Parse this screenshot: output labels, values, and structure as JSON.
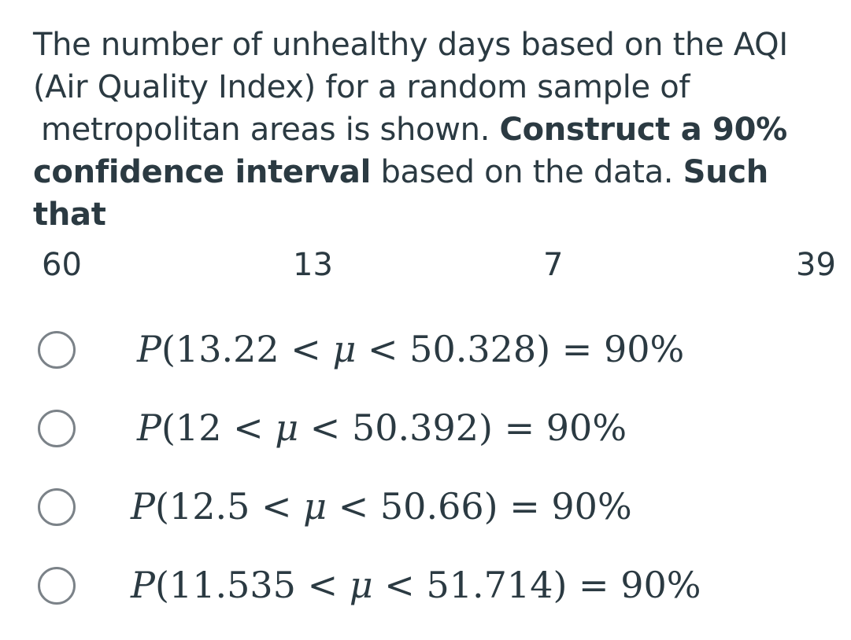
{
  "question": {
    "line1": "The number of unhealthy days based on the AQI",
    "line2": "(Air Quality Index) for a random sample of",
    "line3_plain": "metropolitan areas is shown. ",
    "line3_bold": "Construct a 90%",
    "line4_bold": "confidence interval",
    "line4_plain": " based on the data. ",
    "line4_bold2": "Such",
    "line5_bold": "that"
  },
  "data_values": [
    "60",
    "13",
    "7",
    "39"
  ],
  "options": [
    {
      "label": "P(13.22 < μ < 50.328) = 90%",
      "selected": false
    },
    {
      "label": "P(12 < μ < 50.392) = 90%",
      "selected": false
    },
    {
      "label": "P(12.5 < μ < 50.66) = 90%",
      "selected": false
    },
    {
      "label": "P(11.535 < μ < 51.714) = 90%",
      "selected": false
    }
  ]
}
